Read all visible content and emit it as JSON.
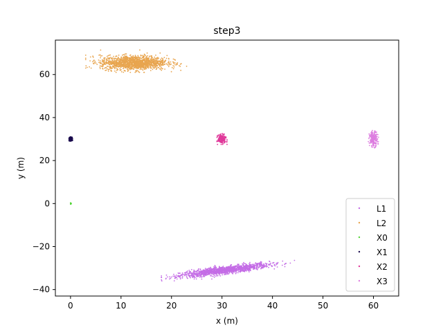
{
  "chart_data": {
    "type": "scatter",
    "title": "step3",
    "xlabel": "x (m)",
    "ylabel": "y (m)",
    "xlim": [
      -3,
      65
    ],
    "ylim": [
      -43,
      76
    ],
    "xticks": [
      0,
      10,
      20,
      30,
      40,
      50,
      60
    ],
    "yticks": [
      -40,
      -20,
      0,
      20,
      40,
      60
    ],
    "grid": false,
    "legend_position": "lower-right",
    "series": [
      {
        "name": "L1",
        "color": "#9b59f2",
        "shape": "ellipse-cloud",
        "center": [
          30.5,
          -31
        ],
        "x_range": [
          18,
          46
        ],
        "y_range": [
          -37,
          -24
        ],
        "orientation": "tilted upward to the right"
      },
      {
        "name": "L2",
        "color": "#e8a54f",
        "shape": "ellipse-cloud",
        "center": [
          12.5,
          65.5
        ],
        "x_range": [
          3,
          23
        ],
        "y_range": [
          61,
          72
        ],
        "orientation": "horizontal"
      },
      {
        "name": "X0",
        "color": "#57d63c",
        "shape": "point-cluster",
        "center": [
          0,
          0
        ],
        "x_range": [
          0,
          0.3
        ],
        "y_range": [
          -0.3,
          0.3
        ]
      },
      {
        "name": "X1",
        "color": "#1a0b4d",
        "shape": "point-cluster",
        "center": [
          0,
          30
        ],
        "x_range": [
          -0.3,
          0.4
        ],
        "y_range": [
          29,
          31
        ]
      },
      {
        "name": "X2",
        "color": "#e0399a",
        "shape": "point-cluster",
        "center": [
          30,
          30
        ],
        "x_range": [
          29,
          31
        ],
        "y_range": [
          27.5,
          32.5
        ]
      },
      {
        "name": "X3",
        "color": "#dd7ee0",
        "shape": "point-cluster",
        "center": [
          60,
          30
        ],
        "x_range": [
          59,
          61
        ],
        "y_range": [
          25.5,
          34
        ]
      }
    ],
    "overlap_color": "#c46de6"
  }
}
